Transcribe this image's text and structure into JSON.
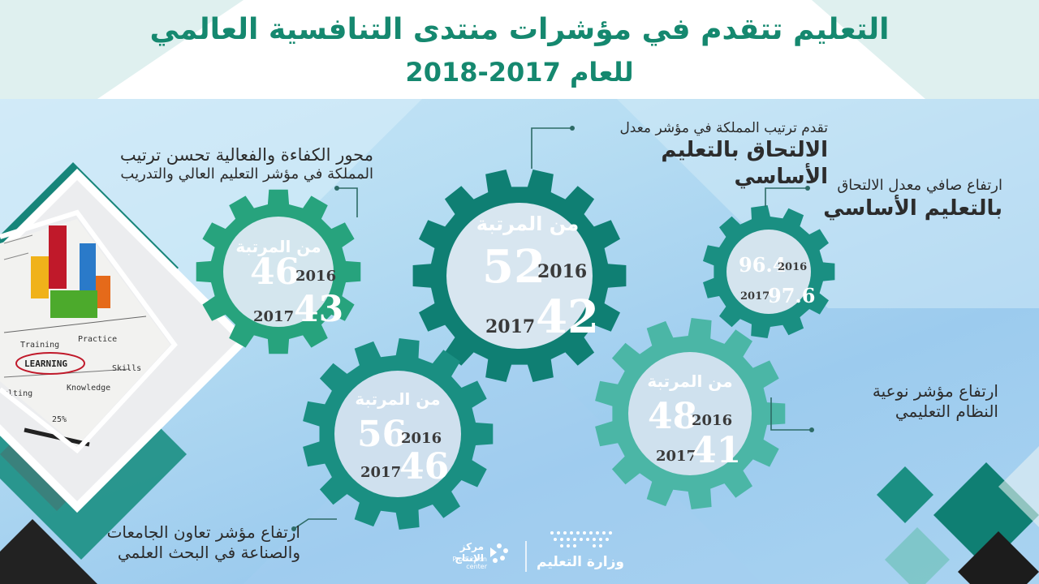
{
  "title": {
    "line1": "التعليم تتقدم في مؤشرات منتدى التنافسية العالمي",
    "line2": "للعام 2017-2018"
  },
  "indicators": {
    "efficiency": {
      "caption_line1": "محور الكفاءة والفعالية تحسن ترتيب",
      "caption_line2": "المملكة في مؤشر التعليم العالي والتدريب",
      "rank_label": "من المرتبة",
      "year_a": "2016",
      "value_a": "46",
      "year_b": "2017",
      "value_b": "43"
    },
    "enrollment_rate": {
      "caption_line1": "تقدم ترتيب المملكة في مؤشر معدل",
      "caption_line2": "الالتحاق بالتعليم الأساسي",
      "rank_label": "من المرتبة",
      "year_a": "2016",
      "value_a": "52",
      "year_b": "2017",
      "value_b": "42"
    },
    "net_enrollment": {
      "caption_line1": "ارتفاع صافي معدل الالتحاق",
      "caption_line2": "بالتعليم الأساسي",
      "year_a": "2016",
      "value_a": "96.4",
      "year_b": "2017",
      "value_b": "97.6"
    },
    "university_industry": {
      "caption_line1": "ارتفاع مؤشر تعاون الجامعات",
      "caption_line2": "والصناعة في البحث العلمي",
      "rank_label": "من المرتبة",
      "year_a": "2016",
      "value_a": "56",
      "year_b": "2017",
      "value_b": "46"
    },
    "system_quality": {
      "caption_line1": "ارتفاع مؤشر نوعية",
      "caption_line2": "النظام التعليمي",
      "rank_label": "من المرتبة",
      "year_a": "2016",
      "value_a": "48",
      "year_b": "2017",
      "value_b": "41"
    }
  },
  "photo": {
    "words": [
      "Training",
      "Practice",
      "LEARNING",
      "Skills",
      "Knowledge",
      "ulting",
      "25%"
    ]
  },
  "footer": {
    "production_center_ar": "مركز الإنتاج",
    "production_center_en": "Production center",
    "ministry": "وزارة التعليم"
  },
  "colors": {
    "title": "#15886f",
    "gear_dark": "#0f7f73",
    "gear_mid": "#1a8f82",
    "gear_green": "#27a37d",
    "gear_light": "#4bb6a6",
    "gear_pale": "#6cc1b8"
  }
}
